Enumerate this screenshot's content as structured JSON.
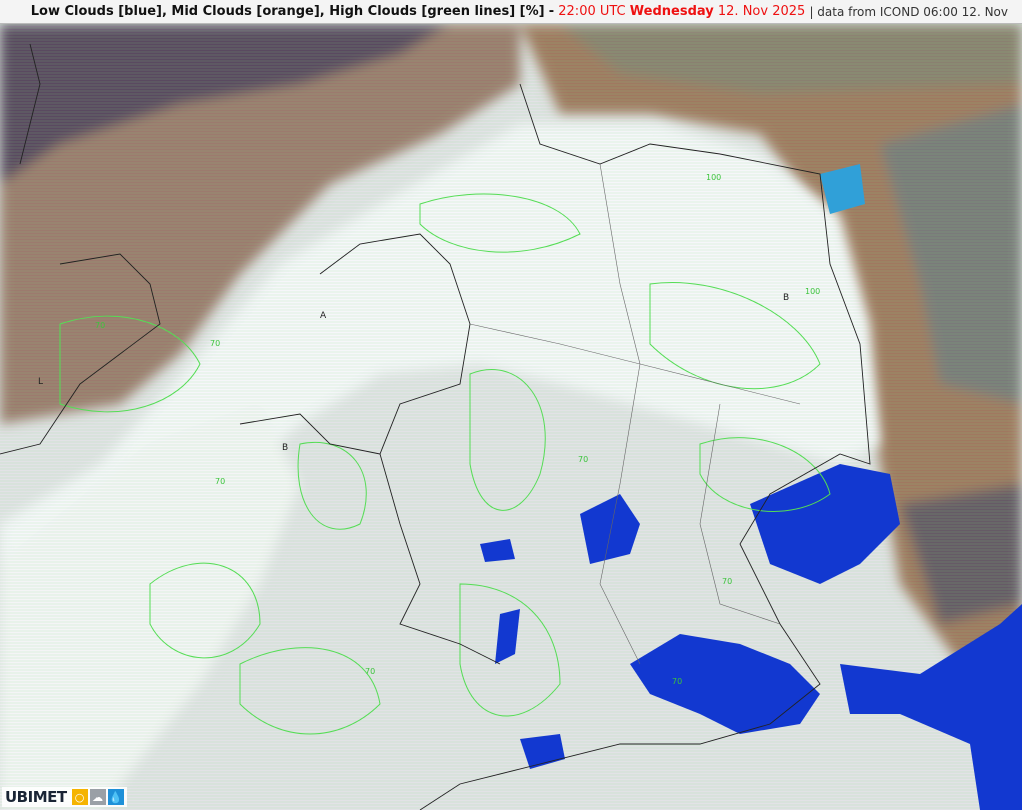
{
  "title": {
    "layers": "Low Clouds [blue], Mid Clouds [orange], High Clouds [green lines] [%]",
    "separator": "-",
    "time": "22:00 UTC",
    "weekday": "Wednesday",
    "date": "12. Nov 2025",
    "source": "| data from ICOND 06:00 12. Nov"
  },
  "legend_colors": {
    "low_clouds": "#1030d0",
    "mid_clouds": "#b8806a",
    "high_clouds": "#44dd44"
  },
  "map_labels": {
    "pressure": [
      "L",
      "A",
      "B",
      "B"
    ],
    "contours": [
      "70",
      "70",
      "70",
      "70",
      "70",
      "100",
      "100",
      "70",
      "70"
    ]
  },
  "logo": {
    "brand": "UBIMET",
    "icons": [
      "sun-icon",
      "cloud-icon",
      "drop-icon"
    ]
  }
}
